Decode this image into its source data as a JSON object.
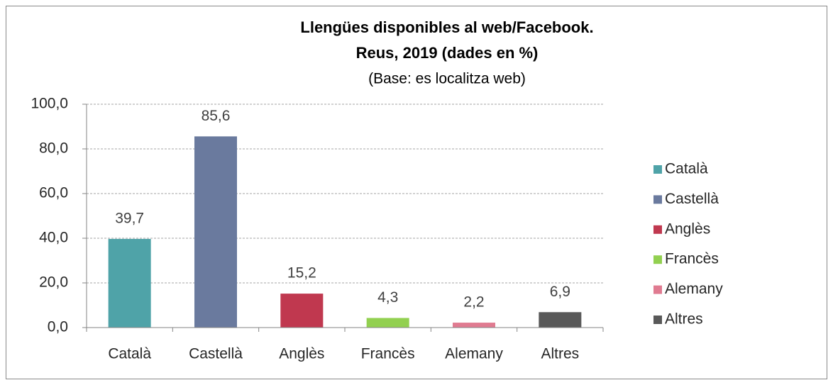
{
  "chart_data": {
    "type": "bar",
    "title": [
      "Llengües disponibles al web/Facebook.",
      "Reus, 2019 (dades en %)"
    ],
    "subtitle": "(Base: es localitza web)",
    "categories": [
      "Català",
      "Castellà",
      "Anglès",
      "Francès",
      "Alemany",
      "Altres"
    ],
    "values": [
      39.7,
      85.6,
      15.2,
      4.3,
      2.2,
      6.9
    ],
    "value_labels": [
      "39,7",
      "85,6",
      "15,2",
      "4,3",
      "2,2",
      "6,9"
    ],
    "colors": [
      "#4fa3a8",
      "#6a7a9e",
      "#c0384f",
      "#92d050",
      "#e07b91",
      "#595959"
    ],
    "ylim": [
      0,
      100
    ],
    "yticks": [
      {
        "value": 0,
        "label": "0,0"
      },
      {
        "value": 20,
        "label": "20,0"
      },
      {
        "value": 40,
        "label": "40,0"
      },
      {
        "value": 60,
        "label": "60,0"
      },
      {
        "value": 80,
        "label": "80,0"
      },
      {
        "value": 100,
        "label": "100,0"
      }
    ],
    "grid": true,
    "legend": "right"
  }
}
